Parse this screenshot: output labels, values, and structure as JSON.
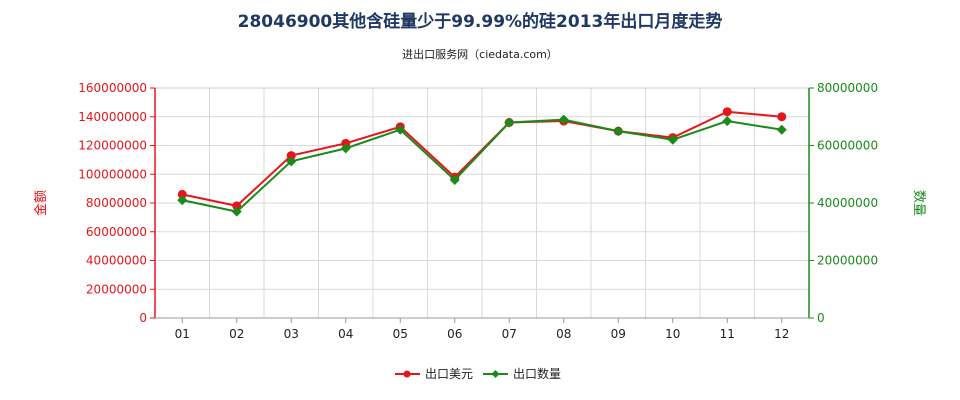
{
  "chart_data": {
    "type": "line",
    "title": "28046900其他含硅量少于99.99%的硅2013年出口月度走势",
    "subtitle": "进出口服务网（ciedata.com）",
    "categories": [
      "01",
      "02",
      "03",
      "04",
      "05",
      "06",
      "07",
      "08",
      "09",
      "10",
      "11",
      "12"
    ],
    "ylabel_left": "金额",
    "ylabel_right": "数量",
    "ylim_left": [
      0,
      160000000
    ],
    "ylim_right": [
      0,
      80000000
    ],
    "yticks_left": [
      "0",
      "20000000",
      "40000000",
      "60000000",
      "80000000",
      "100000000",
      "120000000",
      "140000000",
      "160000000"
    ],
    "yticks_right": [
      "0",
      "20000000",
      "40000000",
      "60000000",
      "80000000"
    ],
    "grid": true,
    "legend_position": "bottom-center",
    "series": [
      {
        "name": "出口美元",
        "axis": "left",
        "color": "#e8141b",
        "marker": "circle",
        "values": [
          86000000,
          78000000,
          113000000,
          121500000,
          133000000,
          98000000,
          136000000,
          137000000,
          130000000,
          125500000,
          143500000,
          140000000
        ]
      },
      {
        "name": "出口数量",
        "axis": "right",
        "color": "#1a8a1a",
        "marker": "diamond",
        "values": [
          41000000,
          37000000,
          54500000,
          59000000,
          65500000,
          48000000,
          68000000,
          69000000,
          65000000,
          62000000,
          68500000,
          65500000
        ]
      }
    ]
  },
  "colors": {
    "left_axis": "#e8141b",
    "right_axis": "#1a8a1a",
    "title": "#1f3864",
    "grid": "#d9d9d9"
  }
}
